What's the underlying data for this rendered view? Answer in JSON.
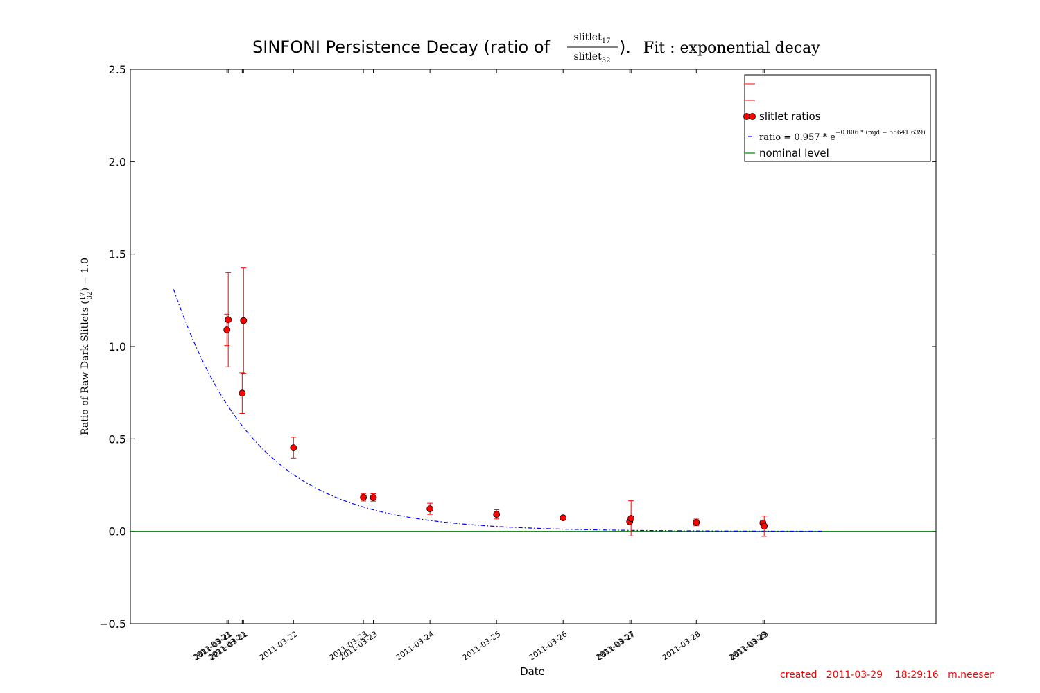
{
  "chart_data": {
    "type": "scatter",
    "title": "SINFONI Persistence Decay (ratio of slitlet17 / slitlet32).   Fit: exponential decay",
    "title_parts": {
      "main": "SINFONI Persistence Decay (ratio of ",
      "frac_num": "slitlet",
      "frac_num_sub": "17",
      "frac_den": "slitlet",
      "frac_den_sub": "32",
      "after": ").",
      "fit": "Fit : exponential decay"
    },
    "xlabel": "Date",
    "ylabel": "Ratio of Raw Dark Slitlets (17/32) − 1.0",
    "ylabel_parts": {
      "pre": "Ratio of Raw Dark Slitlets (",
      "num": "17",
      "den": "32",
      "post": ") − 1.0"
    },
    "ylim": [
      -0.5,
      2.5
    ],
    "xlim": [
      55640.6,
      55652.7
    ],
    "yticks": [
      "2.5",
      "2.0",
      "1.5",
      "1.0",
      "0.5",
      "0.0",
      "−0.5"
    ],
    "ytick_values": [
      2.5,
      2.0,
      1.5,
      1.0,
      0.5,
      0.0,
      -0.5
    ],
    "x_axis_note": "x axis in MJD; tick labels are dates of the observations",
    "xticks": [
      {
        "x": 55642.05,
        "label": "2011-03-21"
      },
      {
        "x": 55642.07,
        "label": "2011-03-21"
      },
      {
        "x": 55642.28,
        "label": "2011-03-21"
      },
      {
        "x": 55642.3,
        "label": "2011-03-21"
      },
      {
        "x": 55643.05,
        "label": "2011-03-22"
      },
      {
        "x": 55644.1,
        "label": "2011-03-23"
      },
      {
        "x": 55644.25,
        "label": "2011-03-23"
      },
      {
        "x": 55645.1,
        "label": "2011-03-24"
      },
      {
        "x": 55646.1,
        "label": "2011-03-25"
      },
      {
        "x": 55647.1,
        "label": "2011-03-26"
      },
      {
        "x": 55648.1,
        "label": "2011-03-27"
      },
      {
        "x": 55648.12,
        "label": "2011-03-27"
      },
      {
        "x": 55649.1,
        "label": "2011-03-28"
      },
      {
        "x": 55650.1,
        "label": "2011-03-29"
      },
      {
        "x": 55650.12,
        "label": "2011-03-29"
      }
    ],
    "series": [
      {
        "name": "slitlet ratios",
        "color": "#ff0000",
        "marker": "circle",
        "points": [
          {
            "x": 55642.05,
            "y": 1.09,
            "err": 0.085
          },
          {
            "x": 55642.07,
            "y": 1.145,
            "err": 0.255
          },
          {
            "x": 55642.28,
            "y": 0.748,
            "err": 0.11
          },
          {
            "x": 55642.3,
            "y": 1.14,
            "err": 0.285
          },
          {
            "x": 55643.05,
            "y": 0.452,
            "err": 0.057
          },
          {
            "x": 55644.1,
            "y": 0.184,
            "err": 0.02
          },
          {
            "x": 55644.25,
            "y": 0.183,
            "err": 0.02
          },
          {
            "x": 55645.1,
            "y": 0.122,
            "err": 0.03
          },
          {
            "x": 55646.1,
            "y": 0.092,
            "err": 0.025
          },
          {
            "x": 55647.1,
            "y": 0.073,
            "err": 0.01
          },
          {
            "x": 55648.1,
            "y": 0.052,
            "err": 0.01
          },
          {
            "x": 55648.12,
            "y": 0.07,
            "err": 0.095
          },
          {
            "x": 55649.1,
            "y": 0.048,
            "err": 0.018
          },
          {
            "x": 55650.1,
            "y": 0.045,
            "err": 0.012
          },
          {
            "x": 55650.12,
            "y": 0.028,
            "err": 0.055
          }
        ]
      },
      {
        "name": "ratio = 0.957 * e^(−0.806 * (mjd − 55641.639))",
        "name_parts": {
          "pre": "ratio = 0.957 * e",
          "exp": "−0.806 * (mjd − 55641.639)"
        },
        "type": "fit",
        "color": "#0000ff",
        "style": "dashdot",
        "a": 0.957,
        "k": 0.806,
        "x0": 55641.639,
        "x_range": [
          55641.25,
          55651.0
        ]
      },
      {
        "name": "nominal level",
        "type": "hline",
        "color": "#008000",
        "y": 0.0
      }
    ],
    "legend": {
      "placement": "top-right",
      "entries": [
        "",
        "",
        "slitlet ratios",
        "ratio = 0.957 * e^(−0.806 * (mjd − 55641.639))",
        "nominal level"
      ]
    },
    "grid": false
  },
  "footer": {
    "text": "created   2011-03-29    18:29:16   m.neeser"
  }
}
